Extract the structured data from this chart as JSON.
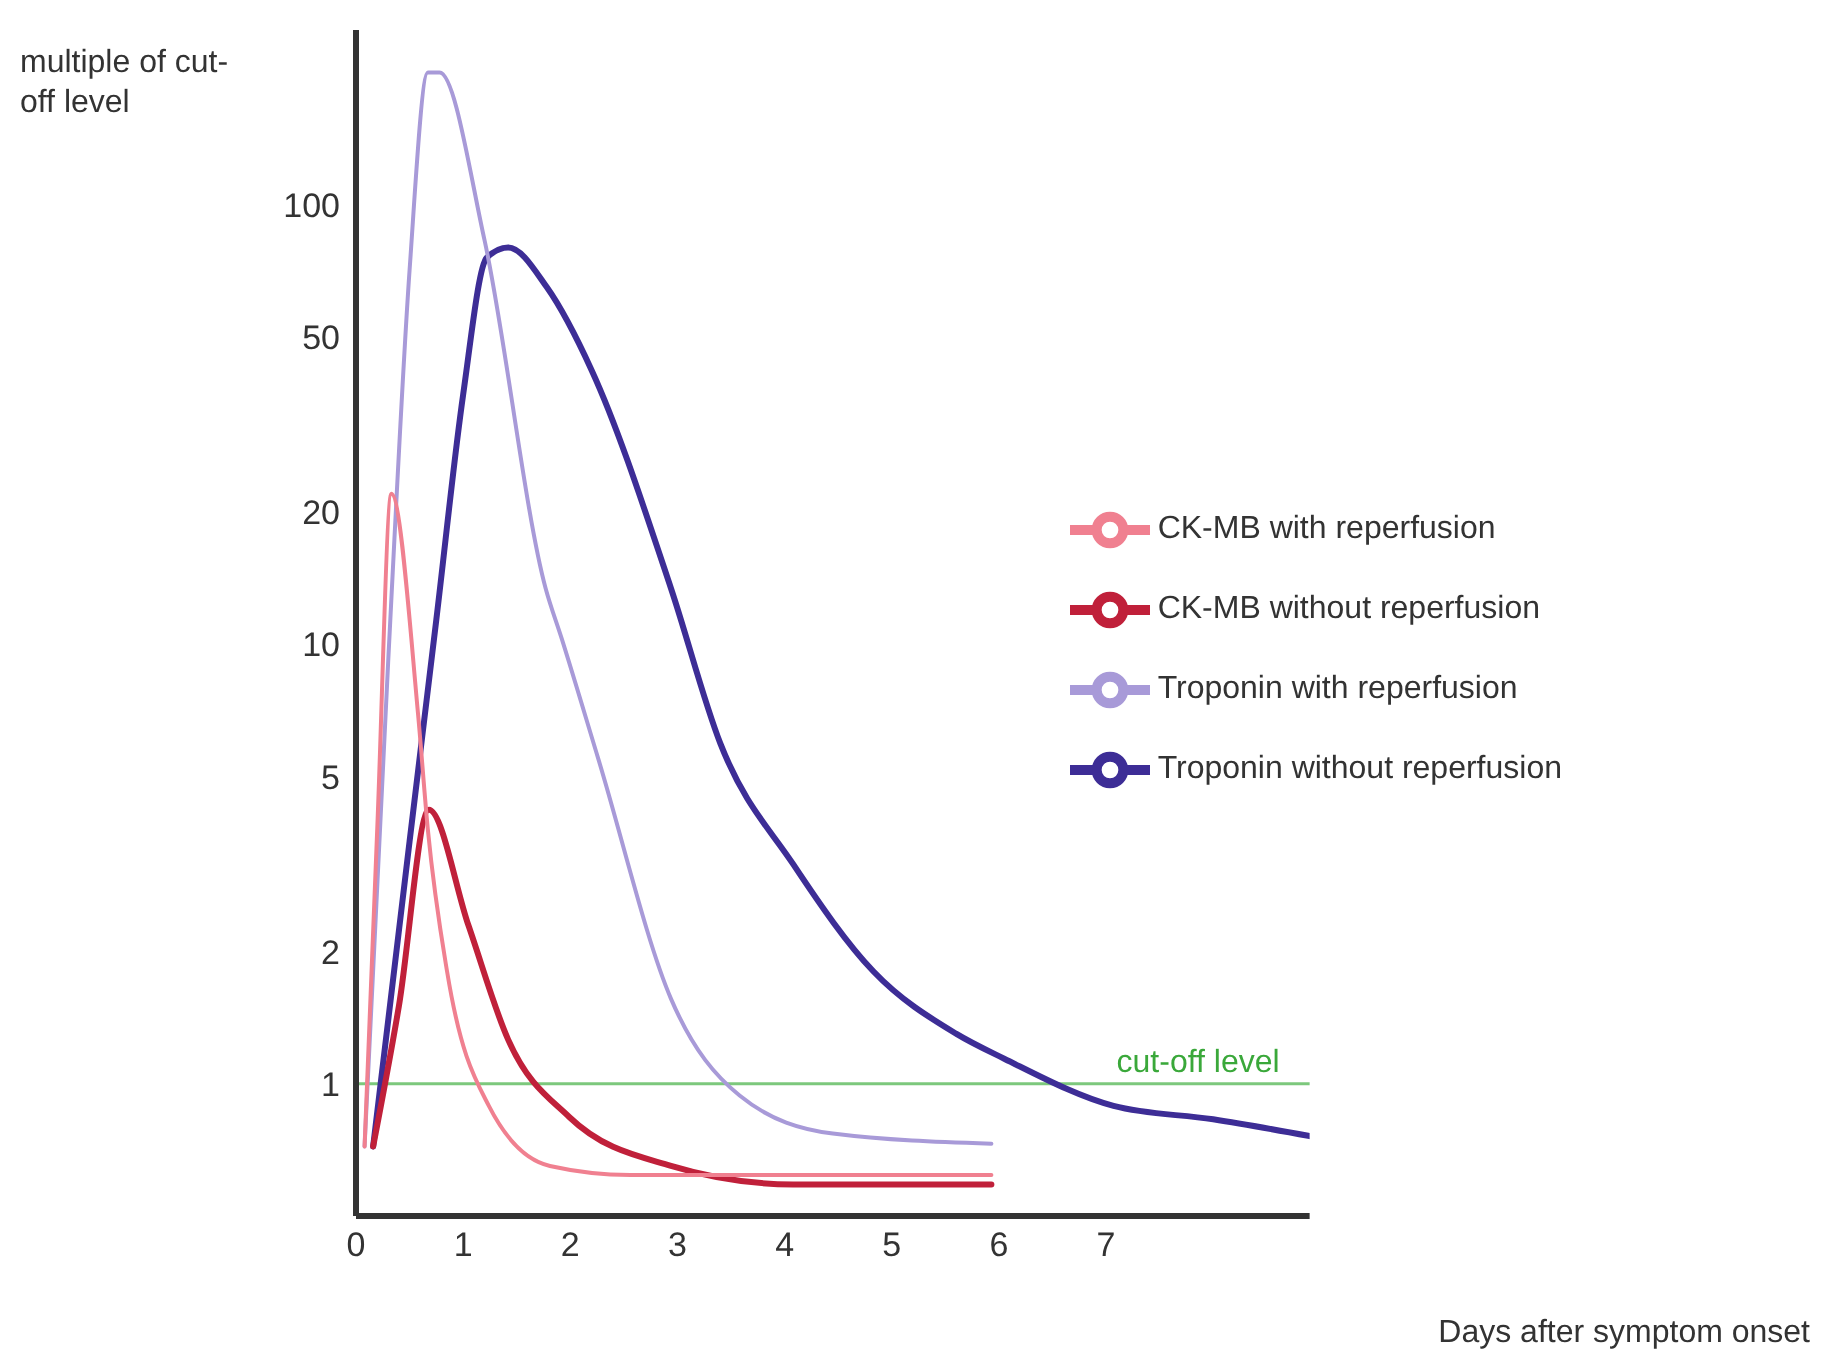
{
  "chart_data": {
    "type": "line",
    "xlabel": "Days after symptom onset",
    "ylabel": "multiple of cut-off level",
    "series": [
      {
        "name": "Troponin without reperfusion",
        "color": "#3d2d96",
        "x": [
          0.16,
          0.5,
          0.75,
          1,
          1.22,
          1.42,
          1.78,
          2.2,
          2.94,
          3.4,
          4.08,
          4.83,
          5.6,
          6.05,
          7.07,
          8,
          8.9
        ],
        "values": [
          0.72,
          3.56,
          11.4,
          37,
          75.8,
          80,
          65,
          42,
          13.4,
          5.95,
          3.16,
          1.8,
          1.3,
          1.14,
          0.89,
          0.83,
          0.76
        ]
      },
      {
        "name": "Troponin with reperfusion",
        "color": "#a89ad8",
        "x": [
          0.08,
          0.3,
          0.5,
          0.67,
          0.78,
          1.2,
          1.77,
          1.92,
          2.26,
          2.94,
          3.58,
          4.45,
          5.93
        ],
        "values": [
          0.72,
          9.1,
          71,
          200,
          200,
          83,
          13.4,
          10.3,
          5.5,
          1.56,
          0.94,
          0.77,
          0.73
        ]
      },
      {
        "name": "CK-MB without reperfusion",
        "color": "#c0203a",
        "x": [
          0.16,
          0.4,
          0.68,
          1.05,
          1.42,
          1.99,
          2.94,
          4.08,
          5.93
        ],
        "values": [
          0.72,
          1.5,
          4.2,
          2.29,
          1.26,
          0.84,
          0.65,
          0.59,
          0.59
        ]
      },
      {
        "name": "CK-MB with reperfusion",
        "color": "#f08090",
        "x": [
          0.08,
          0.2,
          0.33,
          0.58,
          0.67,
          0.85,
          1.24,
          1.81,
          2.56,
          5.93
        ],
        "values": [
          0.72,
          3.9,
          22,
          6.9,
          3.8,
          1.8,
          0.89,
          0.65,
          0.62,
          0.62
        ]
      }
    ],
    "xlim": [
      0,
      8.9
    ],
    "xticks": [
      0,
      1,
      2,
      3,
      4,
      5,
      6,
      7
    ],
    "ylim": [
      0.5,
      250
    ],
    "yticks": [
      1,
      2,
      5,
      10,
      20,
      50,
      100
    ],
    "log": "y",
    "ref_lines": [
      {
        "axis": "y",
        "value": 1,
        "label": "cut-off level",
        "color": "#7cc87c"
      }
    ],
    "legend": "right",
    "grid": false
  }
}
